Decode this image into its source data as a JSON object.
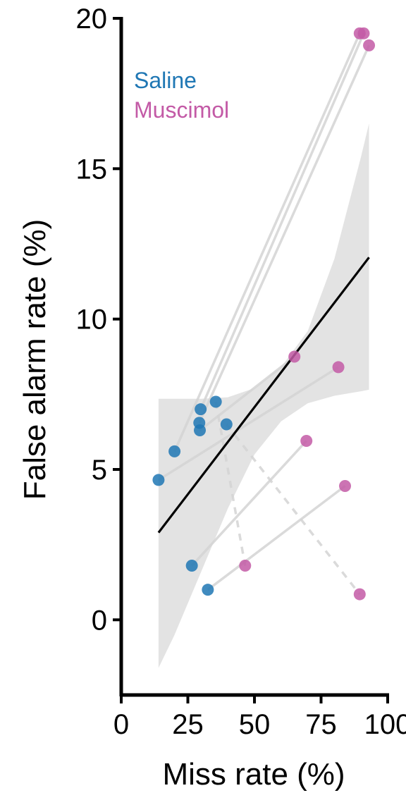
{
  "chart_data": {
    "type": "scatter",
    "title": "",
    "xlabel": "Miss rate (%)",
    "ylabel": "False alarm rate (%)",
    "xlim": [
      0,
      100
    ],
    "ylim": [
      -2.5,
      20
    ],
    "xticks": [
      0,
      25,
      50,
      75,
      100
    ],
    "xtick_labels": [
      "0",
      "25",
      "50",
      "75",
      "100"
    ],
    "yticks": [
      0,
      5,
      10,
      15,
      20
    ],
    "ytick_labels": [
      "0",
      "5",
      "10",
      "15",
      "20"
    ],
    "grid": false,
    "legend": {
      "placement": "top-left",
      "entries": [
        "Saline",
        "Muscimol"
      ]
    },
    "colors": {
      "Saline": "#1f77b4",
      "Muscimol": "#c35aa6",
      "pair_line": "#d3d3d3",
      "fit_line": "#000000",
      "ci_band": "#e3e3e3"
    },
    "series": [
      {
        "name": "Saline",
        "points": [
          {
            "x": 14,
            "y": 4.65
          },
          {
            "x": 20,
            "y": 5.6
          },
          {
            "x": 26.5,
            "y": 1.8
          },
          {
            "x": 29.5,
            "y": 6.3
          },
          {
            "x": 29.8,
            "y": 7.0
          },
          {
            "x": 29.3,
            "y": 6.55
          },
          {
            "x": 32.5,
            "y": 1.0
          },
          {
            "x": 35.5,
            "y": 7.25
          },
          {
            "x": 39.5,
            "y": 6.5
          }
        ]
      },
      {
        "name": "Muscimol",
        "points": [
          {
            "x": 46.5,
            "y": 1.8
          },
          {
            "x": 65,
            "y": 8.75
          },
          {
            "x": 69.5,
            "y": 5.95
          },
          {
            "x": 81.5,
            "y": 8.4
          },
          {
            "x": 84,
            "y": 4.45
          },
          {
            "x": 89.5,
            "y": 0.85
          },
          {
            "x": 89.5,
            "y": 19.5
          },
          {
            "x": 91,
            "y": 19.5
          },
          {
            "x": 93,
            "y": 19.1
          }
        ]
      }
    ],
    "pairs": [
      {
        "x1": 14,
        "y1": 4.65,
        "x2": 81.5,
        "y2": 8.4,
        "dashed": false
      },
      {
        "x1": 20,
        "y1": 5.6,
        "x2": 89.5,
        "y2": 19.5,
        "dashed": false
      },
      {
        "x1": 26.5,
        "y1": 1.8,
        "x2": 69.5,
        "y2": 5.95,
        "dashed": false
      },
      {
        "x1": 29.5,
        "y1": 6.3,
        "x2": 65,
        "y2": 8.75,
        "dashed": false
      },
      {
        "x1": 29.8,
        "y1": 7.0,
        "x2": 91,
        "y2": 19.5,
        "dashed": false
      },
      {
        "x1": 29.3,
        "y1": 6.55,
        "x2": 93,
        "y2": 19.1,
        "dashed": false
      },
      {
        "x1": 32.5,
        "y1": 1.0,
        "x2": 84,
        "y2": 4.45,
        "dashed": false
      },
      {
        "x1": 35.5,
        "y1": 7.25,
        "x2": 46.5,
        "y2": 1.8,
        "dashed": true
      },
      {
        "x1": 39.5,
        "y1": 6.5,
        "x2": 89.5,
        "y2": 0.85,
        "dashed": true
      }
    ],
    "fit": {
      "x": [
        14,
        93
      ],
      "y": [
        2.9,
        12.05
      ]
    },
    "ci_band": {
      "x": [
        14,
        20,
        30,
        40,
        50,
        60,
        70,
        80,
        90,
        93
      ],
      "upper": [
        7.35,
        7.35,
        7.35,
        7.4,
        7.7,
        8.4,
        9.6,
        12.0,
        15.4,
        16.5
      ],
      "lower": [
        -1.6,
        -0.5,
        1.6,
        3.7,
        5.5,
        6.6,
        7.2,
        7.45,
        7.6,
        7.65
      ]
    }
  }
}
